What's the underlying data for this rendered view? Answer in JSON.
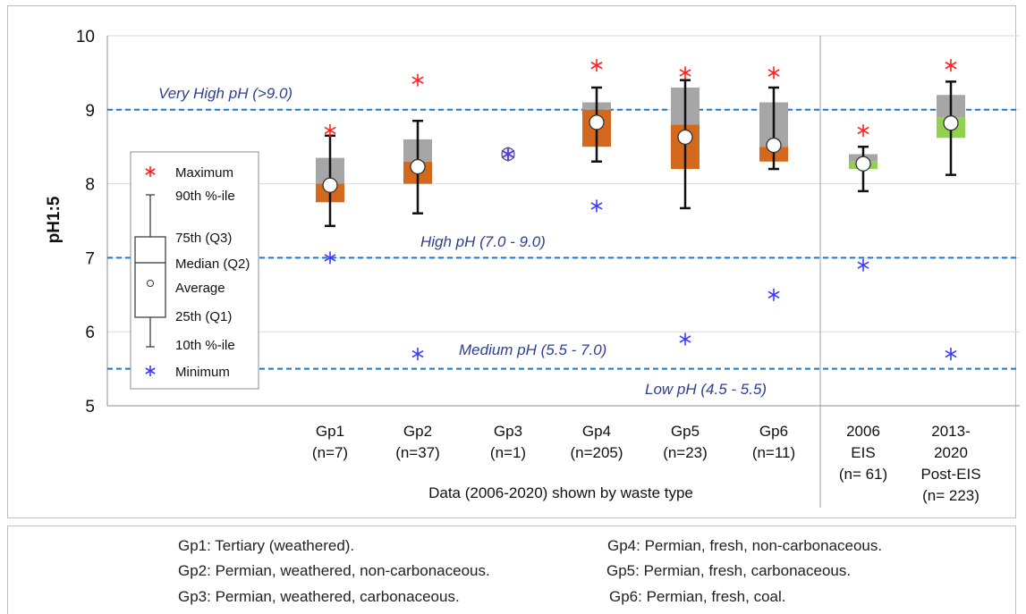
{
  "chart_data": {
    "type": "boxplot",
    "ylabel": "pH1:5",
    "ylim": [
      5,
      10
    ],
    "yticks": [
      5,
      6,
      7,
      8,
      9,
      10
    ],
    "grid": true,
    "x_group_caption": "Data (2006-2020) shown by waste type",
    "categories": [
      {
        "label": [
          "Gp1",
          "(n=7)"
        ],
        "min": 7.0,
        "p10": 7.43,
        "q1": 7.75,
        "median": 8.0,
        "q3": 8.35,
        "p90": 8.65,
        "max": 8.72,
        "avg": 7.98,
        "lower_color": "#d4691e"
      },
      {
        "label": [
          "Gp2",
          "(n=37)"
        ],
        "min": 5.7,
        "p10": 7.6,
        "q1": 8.0,
        "median": 8.3,
        "q3": 8.6,
        "p90": 8.85,
        "max": 9.4,
        "avg": 8.23,
        "lower_color": "#d4691e"
      },
      {
        "label": [
          "Gp3",
          "(n=1)"
        ],
        "single": 8.4
      },
      {
        "label": [
          "Gp4",
          "(n=205)"
        ],
        "min": 7.7,
        "p10": 8.3,
        "q1": 8.5,
        "median": 9.0,
        "q3": 9.1,
        "p90": 9.3,
        "max": 9.6,
        "avg": 8.83,
        "lower_color": "#d4691e"
      },
      {
        "label": [
          "Gp5",
          "(n=23)"
        ],
        "min": 5.9,
        "p10": 7.67,
        "q1": 8.2,
        "median": 8.8,
        "q3": 9.3,
        "p90": 9.4,
        "max": 9.5,
        "avg": 8.63,
        "lower_color": "#d4691e"
      },
      {
        "label": [
          "Gp6",
          "(n=11)"
        ],
        "min": 6.5,
        "p10": 8.2,
        "q1": 8.3,
        "median": 8.5,
        "q3": 9.1,
        "p90": 9.3,
        "max": 9.5,
        "avg": 8.52,
        "lower_color": "#d4691e"
      },
      {
        "label": [
          "2006",
          "EIS",
          "(n= 61)"
        ],
        "min": 6.9,
        "p10": 7.9,
        "q1": 8.2,
        "median": 8.3,
        "q3": 8.4,
        "p90": 8.5,
        "max": 8.72,
        "avg": 8.27,
        "lower_color": "#92d050"
      },
      {
        "label": [
          "2013-",
          "2020",
          "Post-EIS",
          "(n= 223)"
        ],
        "min": 5.7,
        "p10": 8.12,
        "q1": 8.62,
        "median": 8.9,
        "q3": 9.2,
        "p90": 9.38,
        "max": 9.6,
        "avg": 8.82,
        "lower_color": "#92d050"
      }
    ],
    "thresholds": [
      {
        "value": 9.0,
        "label": "Very High pH (>9.0)"
      },
      {
        "value": 7.0,
        "label": "High pH (7.0 - 9.0)"
      },
      {
        "value": 5.5,
        "label": "Medium pH (5.5 - 7.0)"
      },
      {
        "value": 5.5,
        "label": "Low pH (4.5 - 5.5)"
      }
    ],
    "legend": {
      "placement": "left",
      "entries": [
        "Maximum",
        "90th %-ile",
        "75th (Q3)",
        "Median (Q2)",
        "Average",
        "25th (Q1)",
        "10th %-ile",
        "Minimum"
      ]
    },
    "colors": {
      "upper_box": "#a6a6a6",
      "threshold": "#1f77c9",
      "max_marker": "#ff2020",
      "min_marker": "#3b3bff",
      "threshold_text": "#2f3f8f"
    }
  },
  "footnotes": [
    "Gp1: Tertiary (weathered).",
    "Gp2: Permian, weathered, non-carbonaceous.",
    "Gp3: Permian, weathered, carbonaceous.",
    "Gp4: Permian, fresh, non-carbonaceous.",
    "Gp5: Permian, fresh, carbonaceous.",
    "Gp6: Permian, fresh, coal."
  ]
}
